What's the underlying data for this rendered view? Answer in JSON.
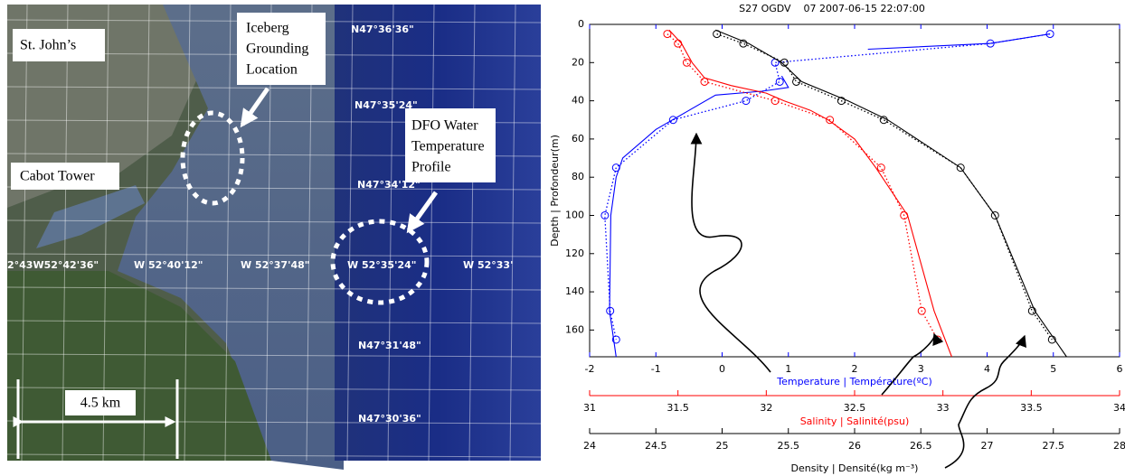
{
  "map": {
    "place_labels": {
      "st_johns": "St. John’s",
      "iceberg": [
        "Iceberg",
        "Grounding",
        "Location"
      ],
      "dfo": [
        "DFO Water",
        "Temperature",
        "Profile"
      ],
      "cabot": "Cabot Tower"
    },
    "scale": "4.5 km",
    "latitudes": [
      "N47°36'36\"",
      "N47°35'24\"",
      "N47°34'12\"",
      "N47°31'48\"",
      "N47°30'36\""
    ],
    "longitudes": [
      "2°43W52°42'36\"",
      "W 52°40'12\"",
      "W 52°37'48\"",
      "W 52°35'24\"",
      "W 52°33'"
    ]
  },
  "chart_data": {
    "type": "line",
    "title": "S27 OGDV    07 2007-06-15 22:07:00",
    "ylabel": "Depth | Profondeur(m)",
    "ylim": [
      0,
      174
    ],
    "yticks": [
      0,
      20,
      40,
      60,
      80,
      100,
      120,
      140,
      160
    ],
    "y_inverted": true,
    "x_axes": [
      {
        "label": "Temperature | Température(ºC)",
        "color": "#0000ff",
        "xlim": [
          -2,
          6
        ],
        "xticks": [
          -2,
          -1,
          0,
          1,
          2,
          3,
          4,
          5,
          6
        ]
      },
      {
        "label": "Salinity | Salinité(psu)",
        "color": "#ff0000",
        "xlim": [
          31,
          34
        ],
        "xticks": [
          31,
          31.5,
          32,
          32.5,
          33,
          33.5,
          34
        ]
      },
      {
        "label": "Density | Densité(kg m⁻³)",
        "color": "#000000",
        "xlim": [
          24,
          28
        ],
        "xticks": [
          24,
          24.5,
          25,
          25.5,
          26,
          26.5,
          27,
          27.5,
          28
        ]
      }
    ],
    "series": [
      {
        "axis": 0,
        "color": "#0000ff",
        "style": "dotted",
        "marker": "circle",
        "depths": [
          5,
          10,
          20,
          30,
          40,
          50,
          75,
          100,
          150,
          165
        ],
        "values": [
          4.95,
          4.05,
          0.8,
          0.87,
          0.36,
          -0.74,
          -1.6,
          -1.77,
          -1.69,
          -1.6
        ]
      },
      {
        "axis": 0,
        "color": "#0000ff",
        "style": "solid",
        "marker": "none",
        "depths": [
          5,
          10,
          13,
          null,
          27,
          33,
          35,
          37,
          45,
          55,
          70,
          80,
          100,
          150,
          174
        ],
        "values": [
          4.95,
          4.05,
          2.2,
          null,
          0.9,
          1.0,
          0.6,
          -0.1,
          -0.5,
          -1.0,
          -1.5,
          -1.6,
          -1.68,
          -1.7,
          -1.6
        ]
      },
      {
        "axis": 1,
        "color": "#ff0000",
        "style": "dotted",
        "marker": "circle",
        "depths": [
          5,
          10,
          20,
          30,
          40,
          50,
          75,
          100,
          150,
          165
        ],
        "values": [
          31.44,
          31.5,
          31.55,
          31.65,
          32.05,
          32.36,
          32.65,
          32.78,
          32.88,
          32.97
        ]
      },
      {
        "axis": 1,
        "color": "#ff0000",
        "style": "solid",
        "marker": "none",
        "depths": [
          3,
          10,
          20,
          28,
          32,
          36,
          40,
          45,
          50,
          60,
          75,
          100,
          150,
          174
        ],
        "values": [
          31.45,
          31.52,
          31.58,
          31.65,
          31.8,
          32.0,
          32.1,
          32.25,
          32.35,
          32.5,
          32.62,
          32.8,
          32.95,
          33.05
        ]
      },
      {
        "axis": 2,
        "color": "#000000",
        "style": "dotted",
        "marker": "circle",
        "depths": [
          5,
          10,
          20,
          30,
          40,
          50,
          75,
          100,
          150,
          165
        ],
        "values": [
          24.96,
          25.16,
          25.47,
          25.56,
          25.9,
          26.22,
          26.8,
          27.06,
          27.34,
          27.49
        ]
      },
      {
        "axis": 2,
        "color": "#000000",
        "style": "solid",
        "marker": "none",
        "depths": [
          3,
          10,
          20,
          30,
          40,
          50,
          75,
          100,
          150,
          174
        ],
        "values": [
          24.95,
          25.2,
          25.45,
          25.6,
          25.95,
          26.25,
          26.8,
          27.06,
          27.36,
          27.6
        ]
      }
    ]
  }
}
